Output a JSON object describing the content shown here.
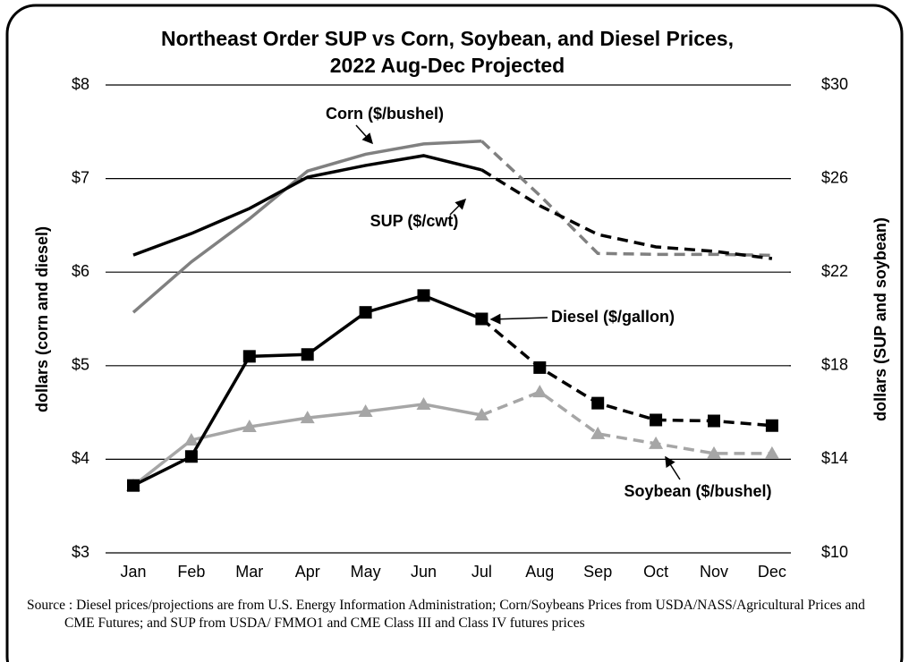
{
  "chart_data": {
    "type": "line",
    "title": [
      "Northeast Order SUP vs Corn, Soybean, and Diesel Prices,",
      "2022 Aug-Dec Projected"
    ],
    "y_label": "dollars (corn and diesel)",
    "y2_label": "dollars (SUP and soybean)",
    "categories": [
      "Jan",
      "Feb",
      "Mar",
      "Apr",
      "May",
      "Jun",
      "Jul",
      "Aug",
      "Sep",
      "Oct",
      "Nov",
      "Dec"
    ],
    "ylim": [
      3,
      8
    ],
    "yticks": [
      {
        "value": 3,
        "label": "$3"
      },
      {
        "value": 4,
        "label": "$4"
      },
      {
        "value": 5,
        "label": "$5"
      },
      {
        "value": 6,
        "label": "$6"
      },
      {
        "value": 7,
        "label": "$7"
      },
      {
        "value": 8,
        "label": "$8"
      }
    ],
    "y2lim": [
      10,
      30
    ],
    "y2ticks": [
      {
        "value": 10,
        "label": "$10"
      },
      {
        "value": 14,
        "label": "$14"
      },
      {
        "value": 18,
        "label": "$18"
      },
      {
        "value": 22,
        "label": "$22"
      },
      {
        "value": 26,
        "label": "$26"
      },
      {
        "value": 30,
        "label": "$30"
      }
    ],
    "grid": true,
    "series": [
      {
        "name": "SUP ($/cwt)",
        "color": "#000000",
        "axis": "y2",
        "marker": "none",
        "dash_from": "Jul",
        "values": [
          22.73,
          23.65,
          24.72,
          26.06,
          26.56,
          26.98,
          26.37,
          24.84,
          23.61,
          23.08,
          22.89,
          22.58
        ]
      },
      {
        "name": "Corn ($/bushel)",
        "color": "#808080",
        "axis": "y",
        "marker": "none",
        "dash_from": "Jul",
        "values": [
          5.57,
          6.11,
          6.57,
          7.08,
          7.26,
          7.37,
          7.4,
          6.82,
          6.2,
          6.19,
          6.19,
          6.18
        ]
      },
      {
        "name": "Diesel ($/gallon)",
        "color": "#000000",
        "axis": "y",
        "marker": "square",
        "dash_from": "Jul",
        "values": [
          3.72,
          4.03,
          5.1,
          5.12,
          5.57,
          5.75,
          5.5,
          4.98,
          4.6,
          4.42,
          4.41,
          4.36
        ]
      },
      {
        "name": "Soybean ($/bushel)",
        "color": "#a6a6a6",
        "axis": "y2",
        "marker": "triangle",
        "dash_from": "Jul",
        "values": [
          12.87,
          14.82,
          15.39,
          15.77,
          16.04,
          16.35,
          15.89,
          16.88,
          15.09,
          14.67,
          14.25,
          14.25
        ]
      }
    ],
    "source": "Source : Diesel prices/projections are from U.S. Energy Information Administration; Corn/Soybeans Prices from USDA/NASS/Agricultural Prices and CME Futures; and SUP from USDA/ FMMO1 and CME Class III and Class IV futures prices"
  }
}
